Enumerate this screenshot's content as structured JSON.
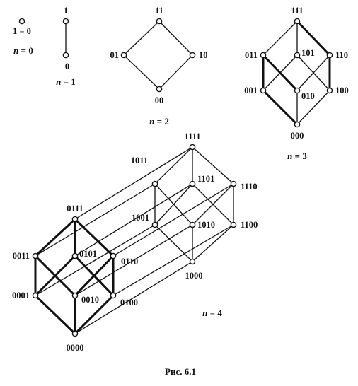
{
  "figure": {
    "caption": "Рис. 6.1",
    "n_prefix": "n",
    "n_eq": " = ",
    "panels": [
      {
        "id": "n0",
        "n_value": "0",
        "vertices": [
          "1 = 0"
        ]
      },
      {
        "id": "n1",
        "n_value": "1",
        "vertices": [
          "1",
          "0"
        ]
      },
      {
        "id": "n2",
        "n_value": "2",
        "vertices": [
          "11",
          "01",
          "10",
          "00"
        ]
      },
      {
        "id": "n3",
        "n_value": "3",
        "vertices": [
          "111",
          "011",
          "101",
          "110",
          "001",
          "010",
          "100",
          "000"
        ]
      },
      {
        "id": "n4",
        "n_value": "4",
        "vertices": [
          "1111",
          "1011",
          "1101",
          "1110",
          "1001",
          "1010",
          "1100",
          "1000",
          "0111",
          "0011",
          "0101",
          "0110",
          "0001",
          "0010",
          "0100",
          "0000"
        ]
      }
    ]
  },
  "colors": {
    "line": "#111111",
    "node_fill": "#ffffff",
    "text": "#111111"
  }
}
